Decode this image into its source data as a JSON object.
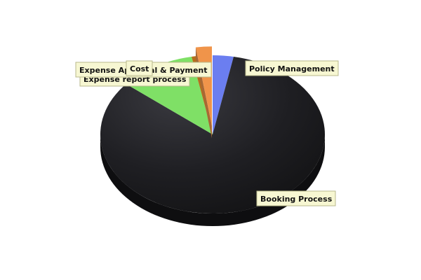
{
  "chart_data": {
    "type": "pie",
    "style": "3d",
    "title": "",
    "slices": [
      {
        "label": "Policy Management",
        "value": 3.0,
        "color": "#6b7ef0",
        "exploded": false
      },
      {
        "label": "Booking Process",
        "value": 83.0,
        "color": "#1f1f23",
        "exploded": false
      },
      {
        "label": "Expense report process",
        "value": 11.0,
        "color": "#7fe066",
        "exploded": false
      },
      {
        "label": "Expense Approval & Payment",
        "value": 0.7,
        "color": "#b56e1e",
        "exploded": false
      },
      {
        "label": "Cost",
        "value": 2.3,
        "color": "#f0944a",
        "exploded": true
      }
    ]
  }
}
